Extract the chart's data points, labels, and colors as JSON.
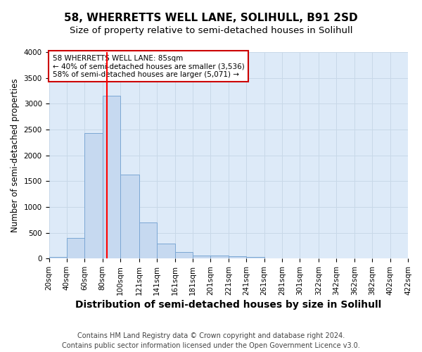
{
  "title": "58, WHERRETTS WELL LANE, SOLIHULL, B91 2SD",
  "subtitle": "Size of property relative to semi-detached houses in Solihull",
  "xlabel": "Distribution of semi-detached houses by size in Solihull",
  "ylabel": "Number of semi-detached properties",
  "footnote1": "Contains HM Land Registry data © Crown copyright and database right 2024.",
  "footnote2": "Contains public sector information licensed under the Open Government Licence v3.0.",
  "bin_labels": [
    "20sqm",
    "40sqm",
    "60sqm",
    "80sqm",
    "100sqm",
    "121sqm",
    "141sqm",
    "161sqm",
    "181sqm",
    "201sqm",
    "221sqm",
    "241sqm",
    "261sqm",
    "281sqm",
    "301sqm",
    "322sqm",
    "342sqm",
    "362sqm",
    "382sqm",
    "402sqm",
    "422sqm"
  ],
  "bin_edges": [
    20,
    40,
    60,
    80,
    100,
    121,
    141,
    161,
    181,
    201,
    221,
    241,
    261,
    281,
    301,
    322,
    342,
    362,
    382,
    402,
    422
  ],
  "bar_heights": [
    30,
    400,
    2430,
    3150,
    1630,
    700,
    290,
    120,
    60,
    55,
    40,
    25,
    0,
    0,
    0,
    0,
    0,
    0,
    0,
    0
  ],
  "bar_color": "#c6d9f0",
  "bar_edge_color": "#7BA7D4",
  "red_line_x": 85,
  "ylim": [
    0,
    4000
  ],
  "annotation_text": "58 WHERRETTS WELL LANE: 85sqm\n← 40% of semi-detached houses are smaller (3,536)\n58% of semi-detached houses are larger (5,071) →",
  "annotation_box_color": "#ffffff",
  "annotation_box_edge": "#cc0000",
  "grid_color": "#c8d8e8",
  "background_color": "#ddeaf8",
  "title_fontsize": 11,
  "subtitle_fontsize": 9.5,
  "xlabel_fontsize": 10,
  "ylabel_fontsize": 8.5,
  "tick_fontsize": 7.5,
  "annot_fontsize": 7.5,
  "footnote_fontsize": 7
}
